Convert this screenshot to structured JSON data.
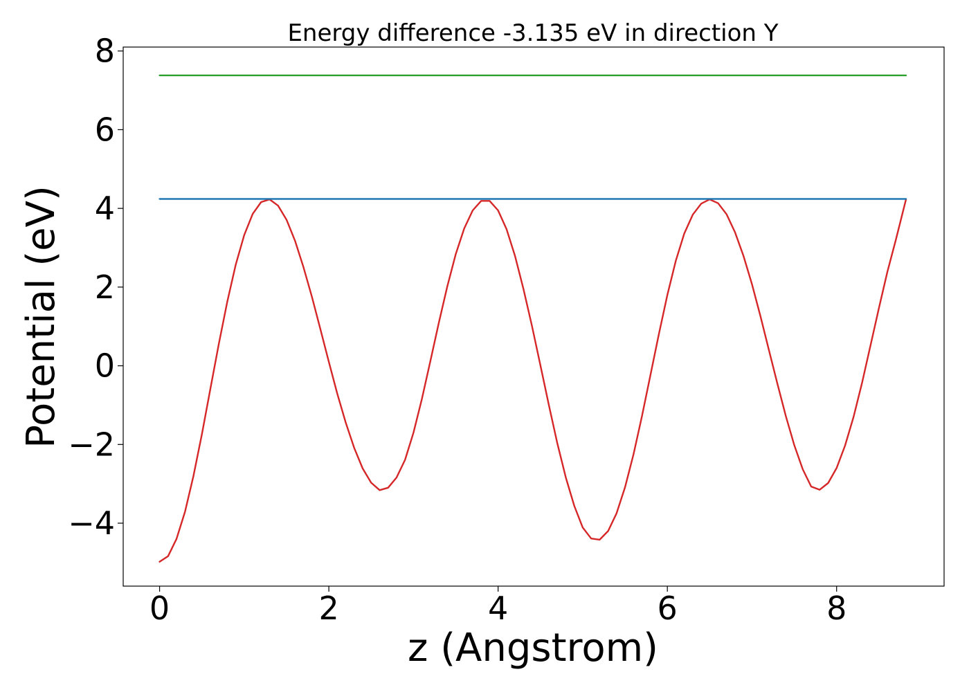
{
  "chart_data": {
    "type": "line",
    "title": "Energy difference -3.135 eV in direction Y",
    "xlabel": "z (Angstrom)",
    "ylabel": "Potential (eV)",
    "xlim": [
      -0.43,
      9.27
    ],
    "ylim": [
      -5.6,
      8.1
    ],
    "x_ticks": [
      0,
      2,
      4,
      6,
      8
    ],
    "x_tick_labels": [
      "0",
      "2",
      "4",
      "6",
      "8"
    ],
    "y_ticks": [
      -4,
      -2,
      0,
      2,
      4,
      6,
      8
    ],
    "y_tick_labels": [
      "−4",
      "−2",
      "0",
      "2",
      "4",
      "6",
      "8"
    ],
    "grid": false,
    "legend": "none",
    "series": [
      {
        "color": "#d62728",
        "x": [
          0.0,
          0.1,
          0.2,
          0.3,
          0.4,
          0.5,
          0.6,
          0.7,
          0.8,
          0.9,
          1.0,
          1.1,
          1.2,
          1.3,
          1.4,
          1.5,
          1.6,
          1.7,
          1.8,
          1.9,
          2.0,
          2.1,
          2.2,
          2.3,
          2.4,
          2.5,
          2.6,
          2.7,
          2.8,
          2.9,
          3.0,
          3.1,
          3.2,
          3.3,
          3.4,
          3.5,
          3.6,
          3.7,
          3.8,
          3.9,
          4.0,
          4.1,
          4.2,
          4.3,
          4.4,
          4.5,
          4.6,
          4.7,
          4.8,
          4.9,
          5.0,
          5.1,
          5.2,
          5.3,
          5.4,
          5.5,
          5.6,
          5.7,
          5.8,
          5.9,
          6.0,
          6.1,
          6.2,
          6.3,
          6.4,
          6.5,
          6.6,
          6.7,
          6.8,
          6.9,
          7.0,
          7.1,
          7.2,
          7.3,
          7.4,
          7.5,
          7.6,
          7.7,
          7.8,
          7.9,
          8.0,
          8.1,
          8.2,
          8.3,
          8.4,
          8.5,
          8.6,
          8.7,
          8.82
        ],
        "y": [
          -4.98,
          -4.84,
          -4.4,
          -3.71,
          -2.8,
          -1.74,
          -0.59,
          0.56,
          1.63,
          2.57,
          3.32,
          3.86,
          4.16,
          4.23,
          4.07,
          3.71,
          3.18,
          2.51,
          1.75,
          0.93,
          0.1,
          -0.71,
          -1.45,
          -2.09,
          -2.61,
          -2.97,
          -3.16,
          -3.1,
          -2.84,
          -2.39,
          -1.7,
          -0.84,
          0.12,
          1.1,
          2.02,
          2.84,
          3.49,
          3.95,
          4.19,
          4.19,
          3.95,
          3.47,
          2.79,
          1.95,
          1.01,
          0.01,
          -1.0,
          -1.97,
          -2.84,
          -3.56,
          -4.11,
          -4.39,
          -4.42,
          -4.2,
          -3.75,
          -3.09,
          -2.25,
          -1.28,
          -0.24,
          0.81,
          1.8,
          2.67,
          3.36,
          3.84,
          4.12,
          4.23,
          4.13,
          3.85,
          3.39,
          2.79,
          2.07,
          1.26,
          0.4,
          -0.45,
          -1.28,
          -2.02,
          -2.63,
          -3.07,
          -3.15,
          -2.98,
          -2.6,
          -2.03,
          -1.3,
          -0.44,
          0.51,
          1.47,
          2.39,
          3.2,
          4.23
        ]
      },
      {
        "color": "#1f77b4",
        "x": [
          0.0,
          8.82
        ],
        "y": [
          4.24,
          4.24
        ]
      },
      {
        "color": "#2ca02c",
        "x": [
          0.0,
          8.82
        ],
        "y": [
          7.38,
          7.38
        ]
      }
    ]
  }
}
